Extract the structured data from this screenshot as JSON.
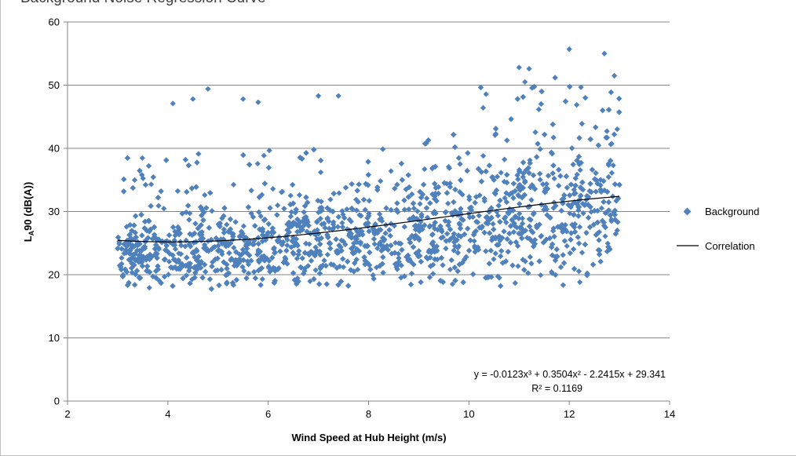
{
  "chart_data": {
    "type": "scatter",
    "title": "Background Noise Regression Curve",
    "xlabel": "Wind Speed at Hub Height (m/s)",
    "ylabel_main": "L",
    "ylabel_sub": "A",
    "ylabel_rest": "90 (dB(A))",
    "xlim": [
      2,
      14
    ],
    "ylim": [
      0,
      60
    ],
    "xticks": [
      2,
      4,
      6,
      8,
      10,
      12,
      14
    ],
    "yticks": [
      0,
      10,
      20,
      30,
      40,
      50,
      60
    ],
    "grid": "horizontal",
    "legend_position": "right",
    "series": [
      {
        "name": "Background",
        "kind": "scatter",
        "color": "#4f81bd",
        "marker": "diamond",
        "x_range": [
          3,
          13
        ],
        "y_range": [
          17,
          56
        ],
        "approx_point_count": 3000,
        "extreme_points": [
          {
            "x": 4.1,
            "y": 47.1
          },
          {
            "x": 4.5,
            "y": 47.8
          },
          {
            "x": 4.8,
            "y": 49.4
          },
          {
            "x": 5.5,
            "y": 47.8
          },
          {
            "x": 5.8,
            "y": 47.3
          },
          {
            "x": 7.0,
            "y": 48.3
          },
          {
            "x": 7.4,
            "y": 48.3
          },
          {
            "x": 11.0,
            "y": 52.8
          },
          {
            "x": 11.2,
            "y": 52.6
          },
          {
            "x": 12.0,
            "y": 55.7
          },
          {
            "x": 12.7,
            "y": 55.0
          },
          {
            "x": 12.9,
            "y": 51.5
          }
        ]
      },
      {
        "name": "Correlation",
        "kind": "line",
        "color": "#000000",
        "equation_coefficients": [
          -0.0123,
          0.3504,
          -2.2415,
          29.341
        ],
        "x_range": [
          3,
          13
        ]
      }
    ],
    "equation_label": "y = -0.0123x³ + 0.3504x² - 2.2415x + 29.341",
    "r2_label": "R² = 0.1169"
  }
}
